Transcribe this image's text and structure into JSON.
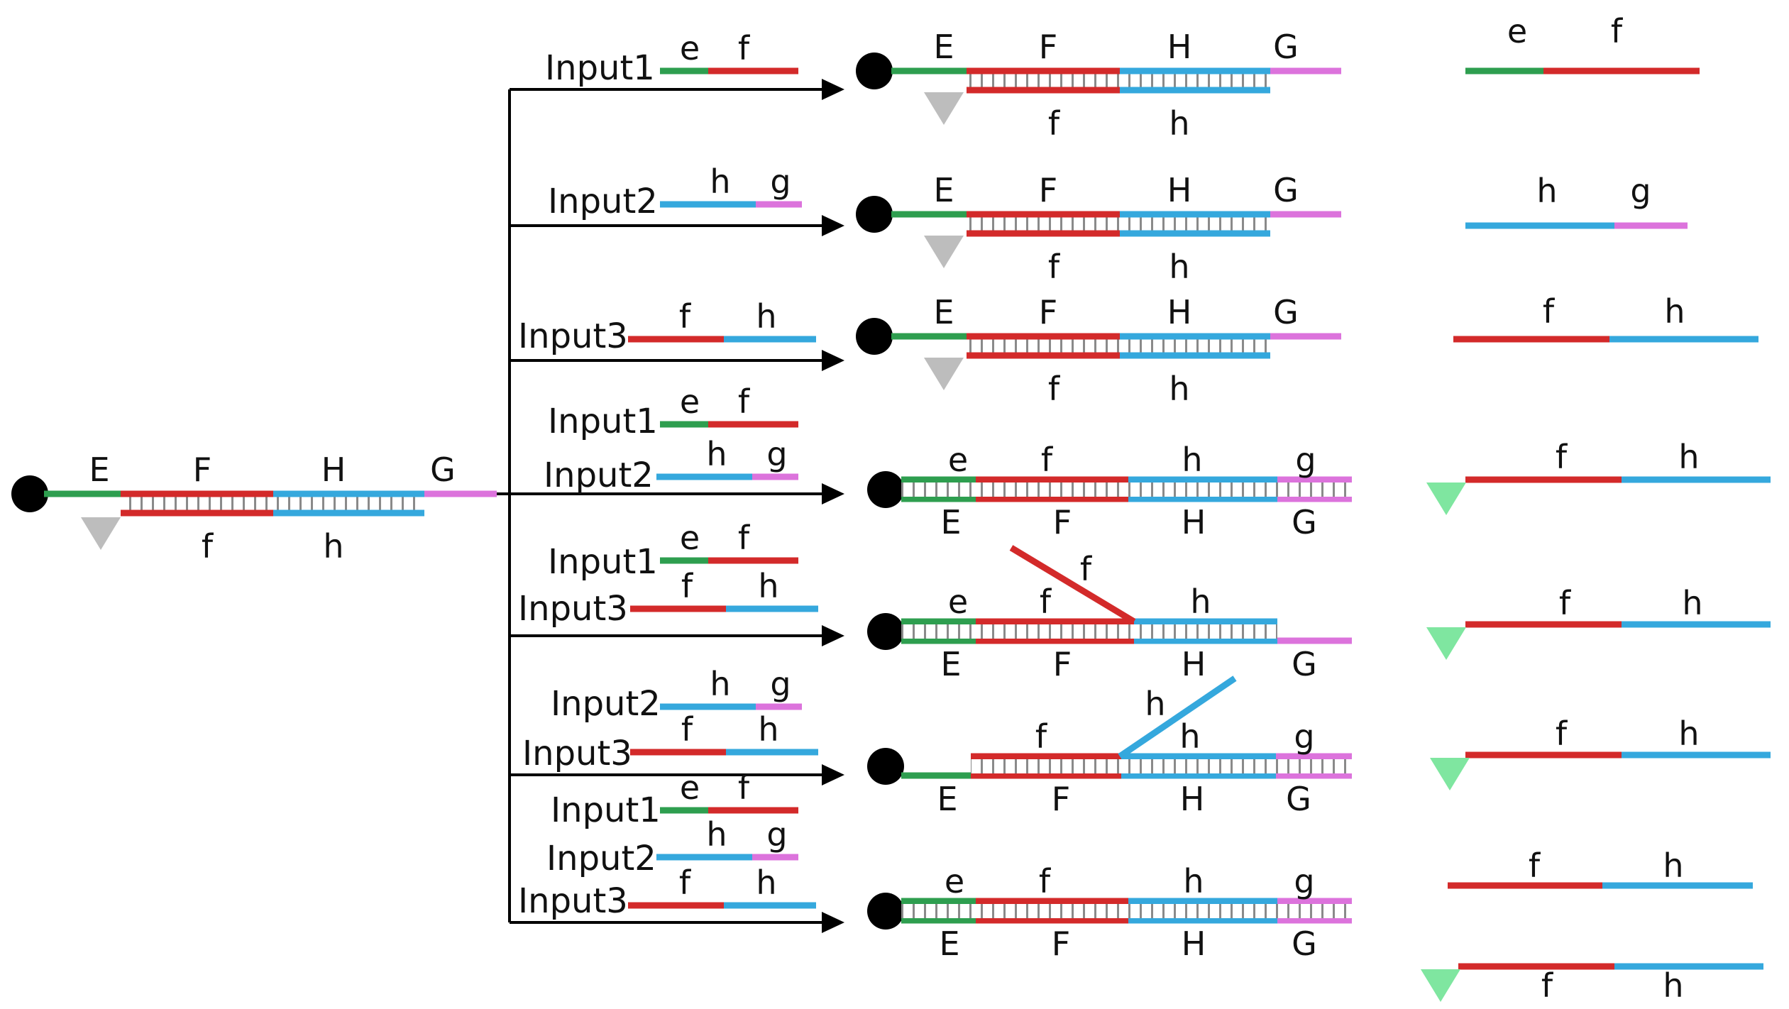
{
  "colors": {
    "green": "#2e9e4f",
    "red": "#d32a2a",
    "blue": "#35a8dd",
    "pink": "#dc73dc",
    "black": "#000000",
    "grey_triangle": "#bdbdbd",
    "green_triangle": "#7fe6a0"
  },
  "icons": {
    "quencher": "black-circle",
    "fluorophore_off": "grey-triangle",
    "fluorophore_on": "green-triangle",
    "arrow": "arrowhead-right"
  },
  "labels": {
    "input1": "Input1",
    "input2": "Input2",
    "input3": "Input3",
    "E": "E",
    "F": "F",
    "H": "H",
    "G": "G",
    "e": "e",
    "f": "f",
    "h": "h",
    "g": "g"
  },
  "rows": [
    {
      "inputs": [
        "Input1"
      ],
      "outcome": "fluorescence off",
      "released": "e f"
    },
    {
      "inputs": [
        "Input2"
      ],
      "outcome": "fluorescence off",
      "released": "h g"
    },
    {
      "inputs": [
        "Input3"
      ],
      "outcome": "fluorescence off",
      "released": "f h"
    },
    {
      "inputs": [
        "Input1",
        "Input2"
      ],
      "outcome": "fluorescence on",
      "released": "f h"
    },
    {
      "inputs": [
        "Input1",
        "Input3"
      ],
      "outcome": "fluorescence on",
      "released": "f h"
    },
    {
      "inputs": [
        "Input2",
        "Input3"
      ],
      "outcome": "fluorescence on",
      "released": "f h"
    },
    {
      "inputs": [
        "Input1",
        "Input2",
        "Input3"
      ],
      "outcome": "fluorescence on",
      "released": "f h"
    }
  ]
}
